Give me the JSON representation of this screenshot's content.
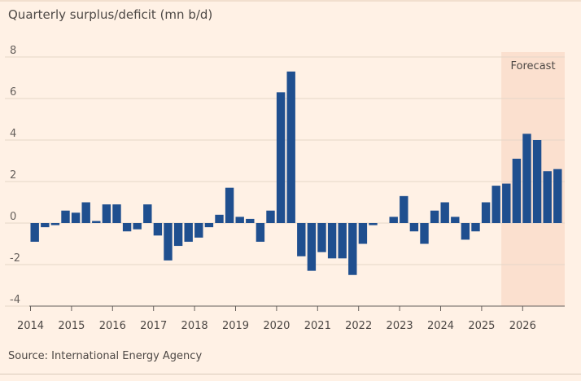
{
  "chart_data": {
    "type": "bar",
    "title": "Quarterly surplus/deficit (mn b/d)",
    "source": "Source: International Energy Agency",
    "forecast_label": "Forecast",
    "forecast_start": "2025 Q3",
    "ylim": [
      -4,
      8
    ],
    "yticks": [
      "8",
      "6",
      "4",
      "2",
      "0",
      "-2",
      "-4"
    ],
    "ytick_values": [
      8,
      6,
      4,
      2,
      0,
      -2,
      -4
    ],
    "xticks": [
      "2014",
      "2015",
      "2016",
      "2017",
      "2018",
      "2019",
      "2020",
      "2021",
      "2022",
      "2023",
      "2024",
      "2025",
      "2026"
    ],
    "x_start_year": 2014,
    "bar_color": "#1f4f8f",
    "forecast_shade_color": "#fbe0cf",
    "categories": [
      "2014 Q1",
      "2014 Q2",
      "2014 Q3",
      "2014 Q4",
      "2015 Q1",
      "2015 Q2",
      "2015 Q3",
      "2015 Q4",
      "2016 Q1",
      "2016 Q2",
      "2016 Q3",
      "2016 Q4",
      "2017 Q1",
      "2017 Q2",
      "2017 Q3",
      "2017 Q4",
      "2018 Q1",
      "2018 Q2",
      "2018 Q3",
      "2018 Q4",
      "2019 Q1",
      "2019 Q2",
      "2019 Q3",
      "2019 Q4",
      "2020 Q1",
      "2020 Q2",
      "2020 Q3",
      "2020 Q4",
      "2021 Q1",
      "2021 Q2",
      "2021 Q3",
      "2021 Q4",
      "2022 Q1",
      "2022 Q2",
      "2022 Q3",
      "2022 Q4",
      "2023 Q1",
      "2023 Q2",
      "2023 Q3",
      "2023 Q4",
      "2024 Q1",
      "2024 Q2",
      "2024 Q3",
      "2024 Q4",
      "2025 Q1",
      "2025 Q2",
      "2025 Q3",
      "2025 Q4",
      "2026 Q1",
      "2026 Q2",
      "2026 Q3",
      "2026 Q4"
    ],
    "values": [
      -0.9,
      -0.2,
      -0.1,
      0.6,
      0.5,
      1.0,
      0.1,
      0.9,
      0.9,
      -0.4,
      -0.3,
      0.9,
      -0.6,
      -1.8,
      -1.1,
      -0.9,
      -0.7,
      -0.2,
      0.4,
      1.7,
      0.3,
      0.2,
      -0.9,
      0.6,
      6.3,
      7.3,
      -1.6,
      -2.3,
      -1.4,
      -1.7,
      -1.7,
      -2.5,
      -1.0,
      -0.1,
      null,
      0.3,
      1.3,
      -0.4,
      -1.0,
      0.6,
      1.0,
      0.3,
      -0.8,
      -0.4,
      1.0,
      1.8,
      1.9,
      3.1,
      4.3,
      4.0,
      2.5,
      2.6
    ]
  }
}
